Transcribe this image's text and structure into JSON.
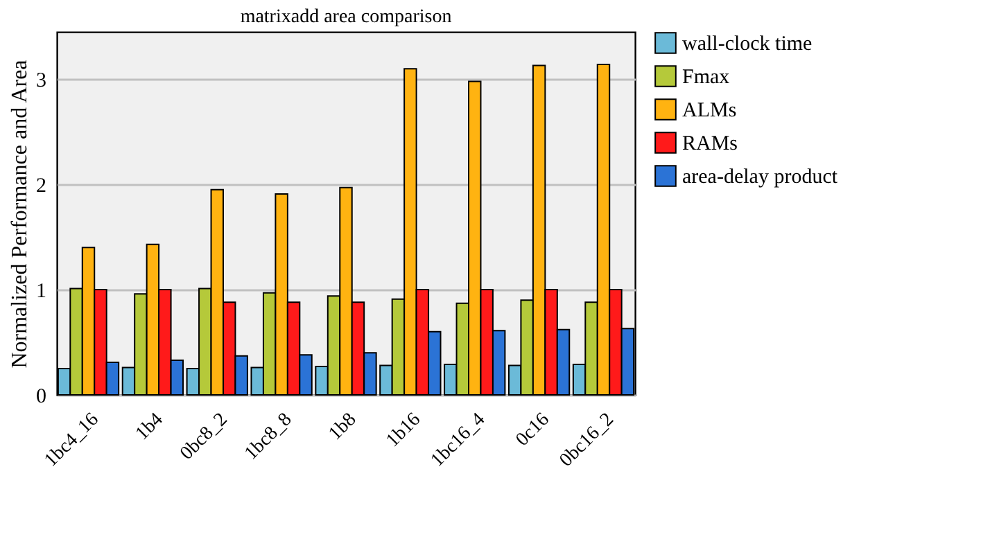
{
  "chart_data": {
    "type": "bar",
    "title": "matrixadd area comparison",
    "ylabel": "Normalized Performance and Area",
    "categories": [
      "1bc4_16",
      "1b4",
      "0bc8_2",
      "1bc8_8",
      "1b8",
      "1b16",
      "1bc16_4",
      "0c16",
      "0bc16_2"
    ],
    "series": [
      {
        "name": "wall-clock time",
        "color": "#6bbad8",
        "values": [
          0.25,
          0.26,
          0.25,
          0.26,
          0.27,
          0.28,
          0.29,
          0.28,
          0.29
        ]
      },
      {
        "name": "Fmax",
        "color": "#b5c93a",
        "values": [
          1.01,
          0.96,
          1.01,
          0.97,
          0.94,
          0.91,
          0.87,
          0.9,
          0.88
        ]
      },
      {
        "name": "ALMs",
        "color": "#ffb311",
        "values": [
          1.4,
          1.43,
          1.95,
          1.91,
          1.97,
          3.1,
          2.98,
          3.13,
          3.14
        ]
      },
      {
        "name": "RAMs",
        "color": "#ff1a1a",
        "values": [
          1,
          1,
          0.88,
          0.88,
          0.88,
          1,
          1,
          1,
          1
        ]
      },
      {
        "name": "area-delay product",
        "color": "#2b73d6",
        "values": [
          0.31,
          0.33,
          0.37,
          0.38,
          0.4,
          0.6,
          0.61,
          0.62,
          0.63
        ]
      }
    ],
    "ylim": [
      0,
      3.45
    ],
    "yticks": [
      0,
      1,
      2,
      3
    ],
    "grid": "y",
    "legend": "right"
  }
}
